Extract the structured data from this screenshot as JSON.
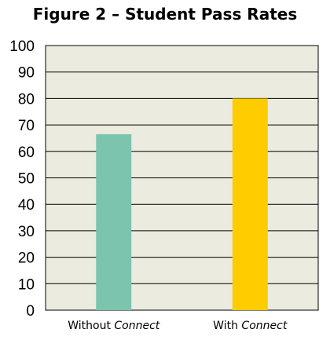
{
  "chart_data": {
    "type": "bar",
    "title": "Figure 2 – Student Pass Rates",
    "xlabel": "",
    "ylabel": "",
    "categories": [
      {
        "prefix": "Without ",
        "emphasis": "Connect"
      },
      {
        "prefix": "With ",
        "emphasis": "Connect"
      }
    ],
    "values": [
      66.5,
      80
    ],
    "bar_colors": [
      "#7dc4ae",
      "#ffcc00"
    ],
    "ylim": [
      0,
      100
    ],
    "yticks": [
      0,
      10,
      20,
      30,
      40,
      50,
      60,
      70,
      80,
      90,
      100
    ],
    "grid": true,
    "legend": "none",
    "plot_background": "#ecebe0",
    "gridline_color": "#000000"
  }
}
